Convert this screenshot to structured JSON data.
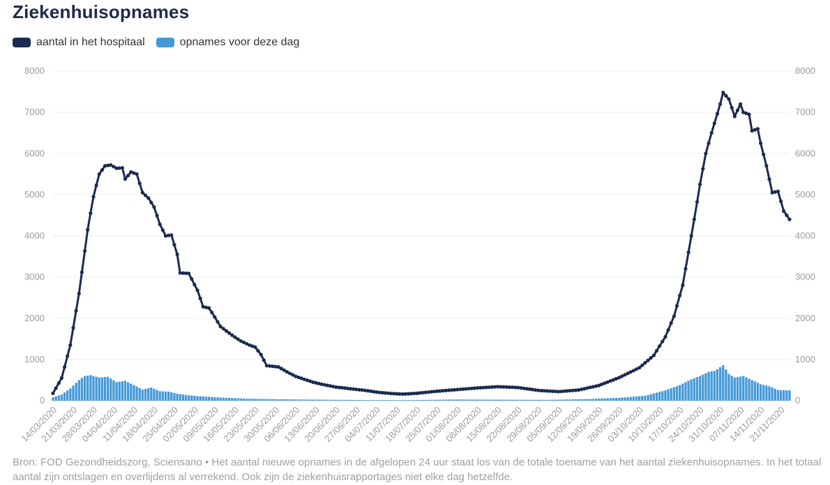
{
  "title": "Ziekenhuisopnames",
  "legend": [
    {
      "label": "aantal in het hospitaal",
      "color": "#1b2a4e"
    },
    {
      "label": "opnames voor deze dag",
      "color": "#4499d9"
    }
  ],
  "source": "Bron: FOD Gezondheidszorg, Sciensano • Het aantal nieuwe opnames in de afgelopen 24 uur staat los van de totale toename van het aantal ziekenhuisopnames. In het totaal aantal zijn ontslagen en overlijdens al verrekend. Ook zijn de ziekenhuisrapportages niet elke dag hetzelfde.",
  "chart_data": {
    "type": "line",
    "x_start": "14/03/2020",
    "x_end": "24/11/2020",
    "xticks": [
      "14/03/2020",
      "21/03/2020",
      "28/03/2020",
      "04/04/2020",
      "11/04/2020",
      "18/04/2020",
      "25/04/2020",
      "02/05/2020",
      "09/05/2020",
      "16/05/2020",
      "23/05/2020",
      "30/05/2020",
      "06/06/2020",
      "13/06/2020",
      "20/06/2020",
      "27/06/2020",
      "04/07/2020",
      "11/07/2020",
      "18/07/2020",
      "25/07/2020",
      "01/08/2020",
      "08/08/2020",
      "15/08/2020",
      "22/08/2020",
      "29/08/2020",
      "05/09/2020",
      "12/09/2020",
      "19/09/2020",
      "26/09/2020",
      "03/10/2020",
      "10/10/2020",
      "17/10/2020",
      "24/10/2020",
      "31/10/2020",
      "07/11/2020",
      "14/11/2020",
      "21/11/2020"
    ],
    "ylim": [
      0,
      8000
    ],
    "yticks": [
      "0",
      "1000",
      "2000",
      "3000",
      "4000",
      "5000",
      "6000",
      "7000",
      "8000"
    ],
    "grid": true,
    "series": [
      {
        "name": "aantal in het hospitaal",
        "type": "line",
        "color": "#1b2a4e",
        "points": [
          [
            "14/03/2020",
            180
          ],
          [
            "17/03/2020",
            550
          ],
          [
            "20/03/2020",
            1350
          ],
          [
            "23/03/2020",
            2600
          ],
          [
            "26/03/2020",
            4150
          ],
          [
            "28/03/2020",
            4950
          ],
          [
            "30/03/2020",
            5500
          ],
          [
            "01/04/2020",
            5700
          ],
          [
            "03/04/2020",
            5720
          ],
          [
            "05/04/2020",
            5640
          ],
          [
            "07/04/2020",
            5650
          ],
          [
            "08/04/2020",
            5380
          ],
          [
            "10/04/2020",
            5550
          ],
          [
            "12/04/2020",
            5500
          ],
          [
            "14/04/2020",
            5050
          ],
          [
            "16/04/2020",
            4920
          ],
          [
            "18/04/2020",
            4700
          ],
          [
            "20/04/2020",
            4280
          ],
          [
            "22/04/2020",
            4000
          ],
          [
            "24/04/2020",
            4020
          ],
          [
            "26/04/2020",
            3550
          ],
          [
            "27/04/2020",
            3100
          ],
          [
            "30/04/2020",
            3090
          ],
          [
            "03/05/2020",
            2680
          ],
          [
            "05/05/2020",
            2280
          ],
          [
            "07/05/2020",
            2250
          ],
          [
            "09/05/2020",
            2030
          ],
          [
            "11/05/2020",
            1800
          ],
          [
            "14/05/2020",
            1640
          ],
          [
            "16/05/2020",
            1540
          ],
          [
            "18/05/2020",
            1450
          ],
          [
            "21/05/2020",
            1350
          ],
          [
            "23/05/2020",
            1300
          ],
          [
            "25/05/2020",
            1120
          ],
          [
            "27/05/2020",
            850
          ],
          [
            "31/05/2020",
            820
          ],
          [
            "03/06/2020",
            700
          ],
          [
            "06/06/2020",
            590
          ],
          [
            "09/06/2020",
            520
          ],
          [
            "12/06/2020",
            450
          ],
          [
            "15/06/2020",
            400
          ],
          [
            "20/06/2020",
            330
          ],
          [
            "25/06/2020",
            290
          ],
          [
            "30/06/2020",
            250
          ],
          [
            "05/07/2020",
            200
          ],
          [
            "10/07/2020",
            170
          ],
          [
            "13/07/2020",
            160
          ],
          [
            "18/07/2020",
            180
          ],
          [
            "25/07/2020",
            230
          ],
          [
            "01/08/2020",
            270
          ],
          [
            "08/08/2020",
            310
          ],
          [
            "15/08/2020",
            340
          ],
          [
            "22/08/2020",
            320
          ],
          [
            "29/08/2020",
            250
          ],
          [
            "05/09/2020",
            220
          ],
          [
            "12/09/2020",
            260
          ],
          [
            "19/09/2020",
            370
          ],
          [
            "26/09/2020",
            560
          ],
          [
            "03/10/2020",
            800
          ],
          [
            "08/10/2020",
            1100
          ],
          [
            "12/10/2020",
            1550
          ],
          [
            "15/10/2020",
            2050
          ],
          [
            "18/10/2020",
            2800
          ],
          [
            "20/10/2020",
            3600
          ],
          [
            "22/10/2020",
            4400
          ],
          [
            "24/10/2020",
            5250
          ],
          [
            "26/10/2020",
            6000
          ],
          [
            "28/10/2020",
            6500
          ],
          [
            "31/10/2020",
            7200
          ],
          [
            "01/11/2020",
            7480
          ],
          [
            "03/11/2020",
            7320
          ],
          [
            "05/11/2020",
            6900
          ],
          [
            "07/11/2020",
            7200
          ],
          [
            "08/11/2020",
            7000
          ],
          [
            "10/11/2020",
            6950
          ],
          [
            "11/11/2020",
            6550
          ],
          [
            "13/11/2020",
            6600
          ],
          [
            "14/11/2020",
            6250
          ],
          [
            "16/11/2020",
            5700
          ],
          [
            "18/11/2020",
            5050
          ],
          [
            "20/11/2020",
            5080
          ],
          [
            "22/11/2020",
            4600
          ],
          [
            "24/11/2020",
            4400
          ]
        ]
      },
      {
        "name": "opnames voor deze dag",
        "type": "bar",
        "color": "#4499d9",
        "points": [
          [
            "14/03/2020",
            80
          ],
          [
            "17/03/2020",
            150
          ],
          [
            "20/03/2020",
            300
          ],
          [
            "23/03/2020",
            500
          ],
          [
            "25/03/2020",
            600
          ],
          [
            "27/03/2020",
            620
          ],
          [
            "30/03/2020",
            560
          ],
          [
            "02/04/2020",
            580
          ],
          [
            "05/04/2020",
            450
          ],
          [
            "08/04/2020",
            480
          ],
          [
            "11/04/2020",
            380
          ],
          [
            "14/04/2020",
            270
          ],
          [
            "17/04/2020",
            320
          ],
          [
            "20/04/2020",
            230
          ],
          [
            "23/04/2020",
            220
          ],
          [
            "26/04/2020",
            170
          ],
          [
            "29/04/2020",
            140
          ],
          [
            "03/05/2020",
            110
          ],
          [
            "08/05/2020",
            90
          ],
          [
            "13/05/2020",
            70
          ],
          [
            "18/05/2020",
            55
          ],
          [
            "23/05/2020",
            45
          ],
          [
            "01/06/2020",
            35
          ],
          [
            "15/06/2020",
            25
          ],
          [
            "01/07/2020",
            15
          ],
          [
            "15/07/2020",
            15
          ],
          [
            "01/08/2020",
            30
          ],
          [
            "15/08/2020",
            25
          ],
          [
            "01/09/2020",
            20
          ],
          [
            "15/09/2020",
            40
          ],
          [
            "26/09/2020",
            70
          ],
          [
            "05/10/2020",
            120
          ],
          [
            "12/10/2020",
            250
          ],
          [
            "17/10/2020",
            380
          ],
          [
            "21/10/2020",
            520
          ],
          [
            "24/10/2020",
            600
          ],
          [
            "27/10/2020",
            700
          ],
          [
            "29/10/2020",
            720
          ],
          [
            "01/11/2020",
            860
          ],
          [
            "03/11/2020",
            650
          ],
          [
            "05/11/2020",
            560
          ],
          [
            "08/11/2020",
            600
          ],
          [
            "11/11/2020",
            500
          ],
          [
            "14/11/2020",
            400
          ],
          [
            "17/11/2020",
            350
          ],
          [
            "20/11/2020",
            260
          ],
          [
            "24/11/2020",
            250
          ]
        ]
      }
    ]
  }
}
